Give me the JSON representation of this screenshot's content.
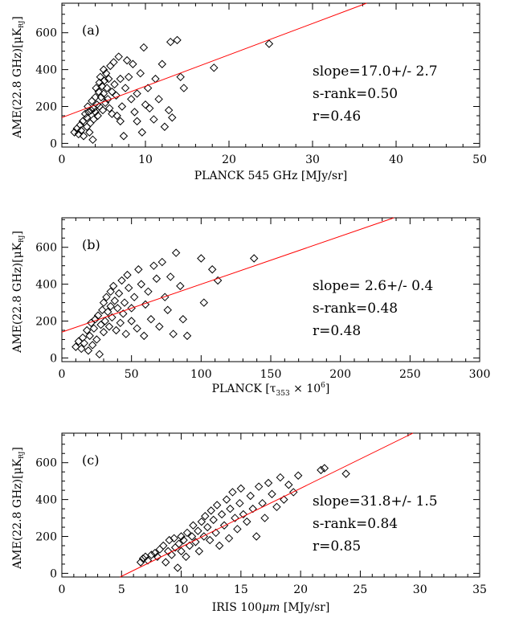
{
  "chart_data": [
    {
      "type": "scatter",
      "panel_label": "(a)",
      "xlabel": "PLANCK 545 GHz [MJy/sr]",
      "ylabel": "AME(22.8 GHz)[μK",
      "ylabel_sub": "RJ",
      "ylabel_close": "]",
      "xlim": [
        0,
        50
      ],
      "ylim": [
        -20,
        760
      ],
      "xticks": [
        0,
        10,
        20,
        30,
        40,
        50
      ],
      "yticks": [
        0,
        200,
        400,
        600
      ],
      "stats": [
        "slope=17.0+/- 2.7",
        "s-rank=0.50",
        "r=0.46"
      ],
      "fit": {
        "slope": 17.0,
        "intercept": 140,
        "color": "#ff0000"
      },
      "points": [
        [
          1.5,
          60
        ],
        [
          1.8,
          80
        ],
        [
          2,
          50
        ],
        [
          2.2,
          100
        ],
        [
          2.3,
          70
        ],
        [
          2.5,
          120
        ],
        [
          2.6,
          40
        ],
        [
          2.8,
          160
        ],
        [
          3,
          90
        ],
        [
          3,
          140
        ],
        [
          3.1,
          200
        ],
        [
          3.2,
          170
        ],
        [
          3.3,
          60
        ],
        [
          3.4,
          110
        ],
        [
          3.5,
          180
        ],
        [
          3.6,
          230
        ],
        [
          3.7,
          20
        ],
        [
          3.8,
          130
        ],
        [
          3.8,
          190
        ],
        [
          4,
          250
        ],
        [
          4,
          170
        ],
        [
          4.1,
          300
        ],
        [
          4.2,
          210
        ],
        [
          4.3,
          150
        ],
        [
          4.4,
          280
        ],
        [
          4.5,
          330
        ],
        [
          4.5,
          200
        ],
        [
          4.6,
          360
        ],
        [
          4.7,
          250
        ],
        [
          4.8,
          310
        ],
        [
          4.9,
          180
        ],
        [
          5,
          400
        ],
        [
          5,
          270
        ],
        [
          5.1,
          340
        ],
        [
          5.2,
          220
        ],
        [
          5.3,
          380
        ],
        [
          5.4,
          300
        ],
        [
          5.5,
          240
        ],
        [
          5.6,
          350
        ],
        [
          5.7,
          190
        ],
        [
          5.8,
          420
        ],
        [
          6,
          280
        ],
        [
          6,
          160
        ],
        [
          6.2,
          440
        ],
        [
          6.3,
          320
        ],
        [
          6.5,
          260
        ],
        [
          6.6,
          150
        ],
        [
          6.8,
          470
        ],
        [
          7,
          120
        ],
        [
          7,
          350
        ],
        [
          7.2,
          200
        ],
        [
          7.4,
          40
        ],
        [
          7.6,
          300
        ],
        [
          7.8,
          450
        ],
        [
          8,
          360
        ],
        [
          8.3,
          240
        ],
        [
          8.5,
          430
        ],
        [
          8.7,
          170
        ],
        [
          9,
          120
        ],
        [
          9,
          270
        ],
        [
          9.4,
          380
        ],
        [
          9.6,
          60
        ],
        [
          9.8,
          520
        ],
        [
          10,
          210
        ],
        [
          10.3,
          300
        ],
        [
          10.5,
          190
        ],
        [
          11,
          130
        ],
        [
          11.2,
          350
        ],
        [
          11.6,
          240
        ],
        [
          12,
          430
        ],
        [
          12.3,
          90
        ],
        [
          12.8,
          180
        ],
        [
          13,
          550
        ],
        [
          13.2,
          140
        ],
        [
          13.8,
          560
        ],
        [
          14.2,
          360
        ],
        [
          14.6,
          300
        ],
        [
          18.2,
          410
        ],
        [
          24.8,
          540
        ]
      ]
    },
    {
      "type": "scatter",
      "panel_label": "(b)",
      "xlabel_prefix": "PLANCK [τ",
      "xlabel_sub": "353",
      "xlabel_mid": " × 10",
      "xlabel_sup": "6",
      "xlabel_suffix": "]",
      "ylabel": "AME(22.8 GHz)[μK",
      "ylabel_sub": "RJ",
      "ylabel_close": "]",
      "xlim": [
        0,
        300
      ],
      "ylim": [
        -20,
        760
      ],
      "xticks": [
        0,
        50,
        100,
        150,
        200,
        250,
        300
      ],
      "yticks": [
        0,
        200,
        400,
        600
      ],
      "stats": [
        "slope= 2.6+/- 0.4",
        "s-rank=0.48",
        "r=0.48"
      ],
      "fit": {
        "slope": 2.6,
        "intercept": 140,
        "color": "#ff0000"
      },
      "points": [
        [
          10,
          60
        ],
        [
          12,
          90
        ],
        [
          14,
          50
        ],
        [
          15,
          110
        ],
        [
          16,
          80
        ],
        [
          18,
          150
        ],
        [
          19,
          40
        ],
        [
          20,
          120
        ],
        [
          21,
          190
        ],
        [
          22,
          70
        ],
        [
          23,
          160
        ],
        [
          24,
          210
        ],
        [
          25,
          100
        ],
        [
          26,
          230
        ],
        [
          27,
          20
        ],
        [
          28,
          180
        ],
        [
          29,
          260
        ],
        [
          30,
          140
        ],
        [
          30,
          300
        ],
        [
          31,
          200
        ],
        [
          32,
          330
        ],
        [
          33,
          250
        ],
        [
          34,
          170
        ],
        [
          35,
          360
        ],
        [
          35,
          280
        ],
        [
          36,
          220
        ],
        [
          37,
          390
        ],
        [
          38,
          310
        ],
        [
          39,
          150
        ],
        [
          40,
          270
        ],
        [
          41,
          350
        ],
        [
          42,
          190
        ],
        [
          43,
          420
        ],
        [
          44,
          240
        ],
        [
          45,
          300
        ],
        [
          46,
          130
        ],
        [
          47,
          450
        ],
        [
          48,
          380
        ],
        [
          50,
          200
        ],
        [
          50,
          270
        ],
        [
          52,
          330
        ],
        [
          54,
          160
        ],
        [
          55,
          480
        ],
        [
          57,
          400
        ],
        [
          59,
          120
        ],
        [
          60,
          290
        ],
        [
          62,
          360
        ],
        [
          64,
          210
        ],
        [
          66,
          500
        ],
        [
          68,
          430
        ],
        [
          70,
          170
        ],
        [
          72,
          520
        ],
        [
          74,
          330
        ],
        [
          76,
          260
        ],
        [
          78,
          440
        ],
        [
          80,
          130
        ],
        [
          82,
          570
        ],
        [
          85,
          390
        ],
        [
          87,
          210
        ],
        [
          90,
          120
        ],
        [
          100,
          540
        ],
        [
          102,
          300
        ],
        [
          108,
          480
        ],
        [
          112,
          420
        ],
        [
          138,
          540
        ]
      ]
    },
    {
      "type": "scatter",
      "panel_label": "(c)",
      "xlabel_prefix": "IRIS 100",
      "xlabel_mu": "μm",
      "xlabel_suffix": " [MJy/sr]",
      "ylabel": "AME(22.8 GHz)[μK",
      "ylabel_sub": "RJ",
      "ylabel_close": "]",
      "xlim": [
        0,
        35
      ],
      "ylim": [
        -20,
        760
      ],
      "xticks": [
        0,
        5,
        10,
        15,
        20,
        25,
        30,
        35
      ],
      "yticks": [
        0,
        200,
        400,
        600
      ],
      "stats": [
        "slope=31.8+/- 1.5",
        "s-rank=0.84",
        "r=0.85"
      ],
      "fit": {
        "slope": 31.8,
        "intercept": -175,
        "color": "#ff0000"
      },
      "points": [
        [
          6.6,
          60
        ],
        [
          6.8,
          80
        ],
        [
          7,
          90
        ],
        [
          7.2,
          70
        ],
        [
          7.5,
          100
        ],
        [
          7.8,
          110
        ],
        [
          8,
          90
        ],
        [
          8.2,
          130
        ],
        [
          8.5,
          150
        ],
        [
          8.7,
          60
        ],
        [
          8.9,
          120
        ],
        [
          9,
          180
        ],
        [
          9.2,
          100
        ],
        [
          9.4,
          190
        ],
        [
          9.5,
          140
        ],
        [
          9.7,
          30
        ],
        [
          9.8,
          160
        ],
        [
          10,
          200
        ],
        [
          10,
          120
        ],
        [
          10.2,
          180
        ],
        [
          10.4,
          90
        ],
        [
          10.5,
          220
        ],
        [
          10.7,
          150
        ],
        [
          10.9,
          200
        ],
        [
          11,
          260
        ],
        [
          11.2,
          170
        ],
        [
          11.4,
          230
        ],
        [
          11.5,
          120
        ],
        [
          11.7,
          280
        ],
        [
          11.9,
          200
        ],
        [
          12,
          310
        ],
        [
          12.2,
          250
        ],
        [
          12.4,
          180
        ],
        [
          12.5,
          340
        ],
        [
          12.7,
          290
        ],
        [
          12.9,
          220
        ],
        [
          13,
          370
        ],
        [
          13.2,
          150
        ],
        [
          13.4,
          320
        ],
        [
          13.6,
          260
        ],
        [
          13.8,
          400
        ],
        [
          14,
          190
        ],
        [
          14.1,
          350
        ],
        [
          14.3,
          440
        ],
        [
          14.5,
          300
        ],
        [
          14.7,
          240
        ],
        [
          14.9,
          380
        ],
        [
          15,
          460
        ],
        [
          15.2,
          320
        ],
        [
          15.5,
          280
        ],
        [
          15.8,
          420
        ],
        [
          16,
          350
        ],
        [
          16.3,
          200
        ],
        [
          16.5,
          470
        ],
        [
          16.8,
          380
        ],
        [
          17,
          300
        ],
        [
          17.3,
          490
        ],
        [
          17.6,
          430
        ],
        [
          18,
          360
        ],
        [
          18.3,
          520
        ],
        [
          18.6,
          400
        ],
        [
          19,
          480
        ],
        [
          19.4,
          440
        ],
        [
          19.8,
          530
        ],
        [
          21.7,
          560
        ],
        [
          22,
          570
        ],
        [
          23.8,
          540
        ]
      ]
    }
  ]
}
